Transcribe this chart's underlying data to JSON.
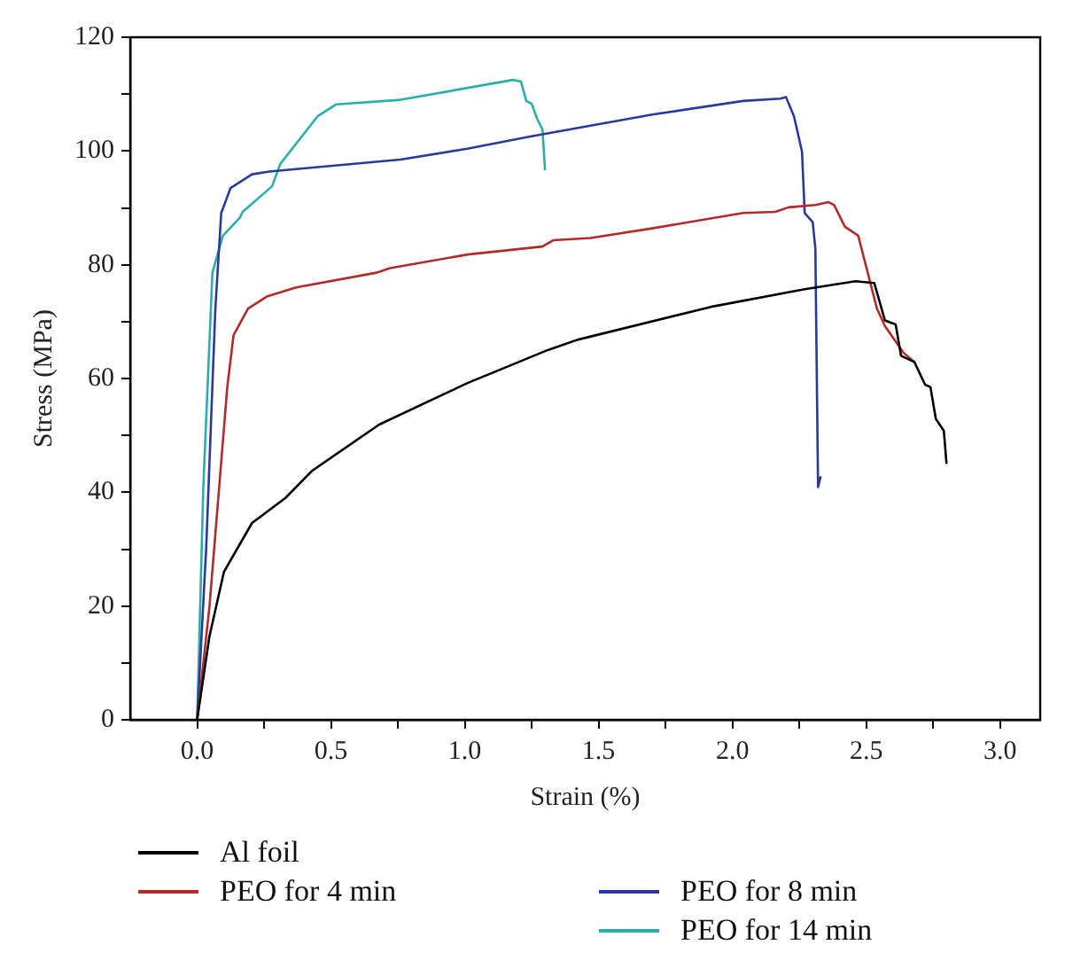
{
  "chart_data": {
    "type": "line",
    "xlabel": "Strain (%)",
    "ylabel": "Stress (MPa)",
    "xlim": [
      -0.25,
      3.15
    ],
    "ylim": [
      0,
      120
    ],
    "xticks": [
      {
        "value": 0,
        "label": "0.0"
      },
      {
        "value": 0.25,
        "label": null
      },
      0.5,
      {
        "value": 0.75,
        "label": null
      },
      {
        "value": 1,
        "label": "1.0"
      },
      {
        "value": 1.25,
        "label": null
      },
      1.5,
      {
        "value": 1.75,
        "label": null
      },
      {
        "value": 2,
        "label": "2.0"
      },
      {
        "value": 2.25,
        "label": null
      },
      2.5,
      {
        "value": 2.75,
        "label": null
      },
      {
        "value": 3,
        "label": "3.0"
      }
    ],
    "yticks": [
      0,
      {
        "value": 10,
        "label": null
      },
      20,
      {
        "value": 30,
        "label": null
      },
      40,
      {
        "value": 50,
        "label": null
      },
      60,
      {
        "value": 70,
        "label": null
      },
      80,
      {
        "value": 90,
        "label": null
      },
      100,
      {
        "value": 110,
        "label": null
      },
      120
    ],
    "grid": false,
    "legend": "bottom",
    "marker": "none",
    "line_style": "solid",
    "series": [
      {
        "name": "Al foil",
        "color": "#000000",
        "x": [
          0,
          0.046,
          0.1,
          0.205,
          0.33,
          0.43,
          0.68,
          1.01,
          1.31,
          1.42,
          1.92,
          2.27,
          2.46,
          2.53,
          2.57,
          2.61,
          2.63,
          2.68,
          2.72,
          2.74,
          2.76,
          2.79,
          2.8
        ],
        "values": [
          0,
          14.7,
          26,
          34.6,
          39,
          43.8,
          51.9,
          59.2,
          65,
          66.8,
          72.6,
          75.7,
          77.1,
          76.8,
          70.2,
          69.5,
          64,
          62.9,
          58.9,
          58.5,
          52.9,
          50.8,
          45
        ]
      },
      {
        "name": "PEO for 4 min",
        "color": "#b22a2a",
        "x": [
          0,
          0.046,
          0.113,
          0.136,
          0.19,
          0.26,
          0.37,
          0.67,
          0.72,
          1.01,
          1.29,
          1.33,
          1.47,
          1.7,
          2.04,
          2.16,
          2.21,
          2.31,
          2.36,
          2.38,
          2.42,
          2.47,
          2.54,
          2.57,
          2.64,
          2.68
        ],
        "values": [
          0,
          19.9,
          58.7,
          67.6,
          72.3,
          74.4,
          76,
          78.6,
          79.4,
          81.8,
          83.2,
          84.3,
          84.7,
          86.4,
          89.1,
          89.3,
          90.1,
          90.5,
          91,
          90.5,
          86.7,
          85.1,
          72.3,
          69.2,
          64.5,
          62.9
        ]
      },
      {
        "name": "PEO for 8 min",
        "color": "#2b3a9a",
        "x": [
          0,
          0.034,
          0.068,
          0.09,
          0.125,
          0.205,
          0.27,
          0.76,
          1.01,
          1.24,
          1.7,
          2.04,
          2.18,
          2.2,
          2.23,
          2.26,
          2.27,
          2.3,
          2.31,
          2.32,
          2.33
        ],
        "values": [
          0,
          30.4,
          72.3,
          89.1,
          93.5,
          95.9,
          96.4,
          98.5,
          100.4,
          102.5,
          106.4,
          108.8,
          109.2,
          109.5,
          106.1,
          99.9,
          89.1,
          87.5,
          82.8,
          40.9,
          42.8
        ]
      },
      {
        "name": "PEO for 14 min",
        "color": "#2aaeaa",
        "x": [
          0,
          0.023,
          0.057,
          0.096,
          0.16,
          0.17,
          0.28,
          0.31,
          0.45,
          0.52,
          0.76,
          1.18,
          1.21,
          1.23,
          1.25,
          1.27,
          1.29,
          1.3
        ],
        "values": [
          0,
          40.9,
          78.6,
          85.1,
          88.3,
          89.3,
          93.8,
          97.7,
          106.1,
          108.2,
          109,
          112.5,
          112.2,
          108.8,
          108.3,
          105.7,
          103.8,
          96.6
        ]
      }
    ]
  }
}
